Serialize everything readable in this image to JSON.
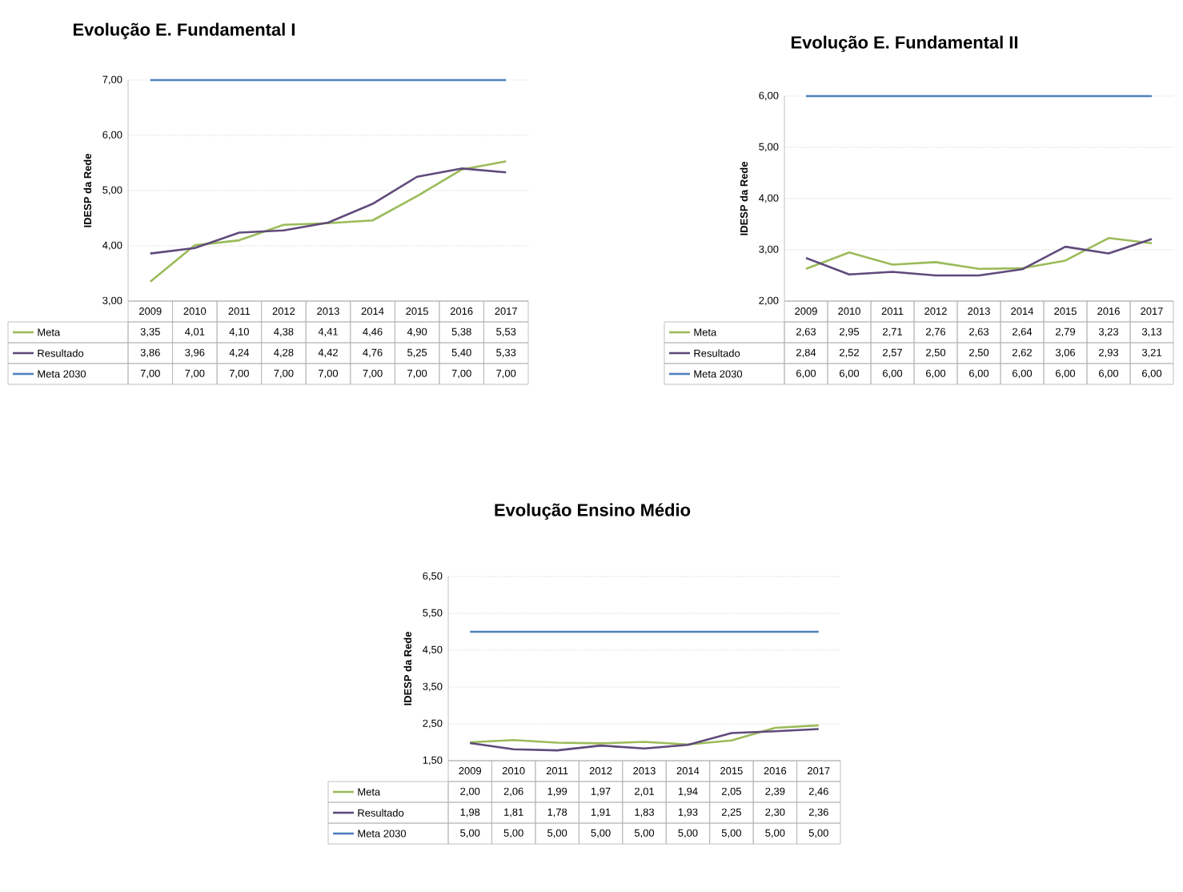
{
  "chart_data": [
    {
      "type": "line",
      "title": "Evolução E. Fundamental I",
      "ylabel": "IDESP da Rede",
      "categories": [
        "2009",
        "2010",
        "2011",
        "2012",
        "2013",
        "2014",
        "2015",
        "2016",
        "2017"
      ],
      "series": [
        {
          "name": "Meta",
          "color": "#9bbb59",
          "values": [
            3.35,
            4.01,
            4.1,
            4.38,
            4.41,
            4.46,
            4.9,
            5.38,
            5.53
          ],
          "value_labels": [
            "3,35",
            "4,01",
            "4,10",
            "4,38",
            "4,41",
            "4,46",
            "4,90",
            "5,38",
            "5,53"
          ]
        },
        {
          "name": "Resultado",
          "color": "#604a7b",
          "values": [
            3.86,
            3.96,
            4.24,
            4.28,
            4.42,
            4.76,
            5.25,
            5.4,
            5.33
          ],
          "value_labels": [
            "3,86",
            "3,96",
            "4,24",
            "4,28",
            "4,42",
            "4,76",
            "5,25",
            "5,40",
            "5,33"
          ]
        },
        {
          "name": "Meta 2030",
          "color": "#4f81bd",
          "values": [
            7,
            7,
            7,
            7,
            7,
            7,
            7,
            7,
            7
          ],
          "value_labels": [
            "7,00",
            "7,00",
            "7,00",
            "7,00",
            "7,00",
            "7,00",
            "7,00",
            "7,00",
            "7,00"
          ]
        }
      ],
      "ylim": [
        3,
        7
      ],
      "yticks": [
        {
          "value": 3,
          "label": "3,00"
        },
        {
          "value": 4,
          "label": "4,00"
        },
        {
          "value": 5,
          "label": "5,00"
        },
        {
          "value": 6,
          "label": "6,00"
        },
        {
          "value": 7,
          "label": "7,00"
        }
      ],
      "grid": "y",
      "legend": "bottom left"
    },
    {
      "type": "line",
      "title": "Evolução E. Fundamental II",
      "ylabel": "IDESP da Rede",
      "categories": [
        "2009",
        "2010",
        "2011",
        "2012",
        "2013",
        "2014",
        "2015",
        "2016",
        "2017"
      ],
      "series": [
        {
          "name": "Meta",
          "color": "#9bbb59",
          "values": [
            2.63,
            2.95,
            2.71,
            2.76,
            2.63,
            2.64,
            2.79,
            3.23,
            3.13
          ],
          "value_labels": [
            "2,63",
            "2,95",
            "2,71",
            "2,76",
            "2,63",
            "2,64",
            "2,79",
            "3,23",
            "3,13"
          ]
        },
        {
          "name": "Resultado",
          "color": "#604a7b",
          "values": [
            2.84,
            2.52,
            2.57,
            2.5,
            2.5,
            2.62,
            3.06,
            2.93,
            3.21
          ],
          "value_labels": [
            "2,84",
            "2,52",
            "2,57",
            "2,50",
            "2,50",
            "2,62",
            "3,06",
            "2,93",
            "3,21"
          ]
        },
        {
          "name": "Meta 2030",
          "color": "#4f81bd",
          "values": [
            6,
            6,
            6,
            6,
            6,
            6,
            6,
            6,
            6
          ],
          "value_labels": [
            "6,00",
            "6,00",
            "6,00",
            "6,00",
            "6,00",
            "6,00",
            "6,00",
            "6,00",
            "6,00"
          ]
        }
      ],
      "ylim": [
        2,
        6
      ],
      "yticks": [
        {
          "value": 2,
          "label": "2,00"
        },
        {
          "value": 3,
          "label": "3,00"
        },
        {
          "value": 4,
          "label": "4,00"
        },
        {
          "value": 5,
          "label": "5,00"
        },
        {
          "value": 6,
          "label": "6,00"
        }
      ],
      "grid": "y",
      "legend": "bottom left"
    },
    {
      "type": "line",
      "title": "Evolução Ensino Médio",
      "ylabel": "IDESP da Rede",
      "categories": [
        "2009",
        "2010",
        "2011",
        "2012",
        "2013",
        "2014",
        "2015",
        "2016",
        "2017"
      ],
      "series": [
        {
          "name": "Meta",
          "color": "#9bbb59",
          "values": [
            2.0,
            2.06,
            1.99,
            1.97,
            2.01,
            1.94,
            2.05,
            2.39,
            2.46
          ],
          "value_labels": [
            "2,00",
            "2,06",
            "1,99",
            "1,97",
            "2,01",
            "1,94",
            "2,05",
            "2,39",
            "2,46"
          ]
        },
        {
          "name": "Resultado",
          "color": "#604a7b",
          "values": [
            1.98,
            1.81,
            1.78,
            1.91,
            1.83,
            1.93,
            2.25,
            2.3,
            2.36
          ],
          "value_labels": [
            "1,98",
            "1,81",
            "1,78",
            "1,91",
            "1,83",
            "1,93",
            "2,25",
            "2,30",
            "2,36"
          ]
        },
        {
          "name": "Meta 2030",
          "color": "#4f81bd",
          "values": [
            5,
            5,
            5,
            5,
            5,
            5,
            5,
            5,
            5
          ],
          "value_labels": [
            "5,00",
            "5,00",
            "5,00",
            "5,00",
            "5,00",
            "5,00",
            "5,00",
            "5,00",
            "5,00"
          ]
        }
      ],
      "ylim": [
        1.5,
        6.5
      ],
      "yticks": [
        {
          "value": 1.5,
          "label": "1,50"
        },
        {
          "value": 2.5,
          "label": "2,50"
        },
        {
          "value": 3.5,
          "label": "3,50"
        },
        {
          "value": 4.5,
          "label": "4,50"
        },
        {
          "value": 5.5,
          "label": "5,50"
        },
        {
          "value": 6.5,
          "label": "6,50"
        }
      ],
      "grid": "y",
      "legend": "bottom left"
    }
  ]
}
